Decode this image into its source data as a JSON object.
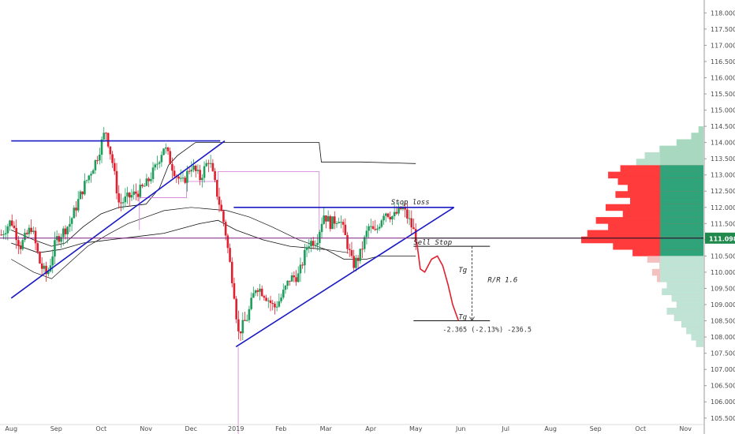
{
  "chart_data": {
    "type": "candlestick",
    "title": "",
    "xlabel": "",
    "ylabel": "",
    "y_axis_side": "right",
    "ylim": [
      105.3,
      118.3
    ],
    "y_ticks": [
      "118.000",
      "117.500",
      "117.000",
      "116.500",
      "116.000",
      "115.500",
      "115.000",
      "114.500",
      "114.000",
      "113.500",
      "113.000",
      "112.500",
      "112.000",
      "111.500",
      "111.000",
      "110.500",
      "110.000",
      "109.500",
      "109.000",
      "108.500",
      "108.000",
      "107.500",
      "107.000",
      "106.500",
      "106.000",
      "105.500"
    ],
    "x_ticks": [
      {
        "label": "Aug",
        "t": 0.0
      },
      {
        "label": "Sep",
        "t": 1.0
      },
      {
        "label": "Oct",
        "t": 2.0
      },
      {
        "label": "Nov",
        "t": 3.0
      },
      {
        "label": "Dec",
        "t": 4.0
      },
      {
        "label": "2019",
        "t": 5.0
      },
      {
        "label": "Feb",
        "t": 6.0
      },
      {
        "label": "Mar",
        "t": 7.0
      },
      {
        "label": "Apr",
        "t": 8.0
      },
      {
        "label": "May",
        "t": 9.0
      },
      {
        "label": "Jun",
        "t": 10.0
      },
      {
        "label": "Jul",
        "t": 11.0
      },
      {
        "label": "Aug",
        "t": 12.0
      },
      {
        "label": "Sep",
        "t": 13.0
      },
      {
        "label": "Oct",
        "t": 14.0
      },
      {
        "label": "Nov",
        "t": 15.0
      }
    ],
    "xlim": [
      -0.25,
      15.4
    ],
    "last_price": "111.098",
    "price_path": [
      {
        "t": -0.25,
        "p": 111.1
      },
      {
        "t": 0.0,
        "p": 111.6
      },
      {
        "t": 0.2,
        "p": 110.8
      },
      {
        "t": 0.45,
        "p": 111.4
      },
      {
        "t": 0.65,
        "p": 110.2
      },
      {
        "t": 0.8,
        "p": 109.9
      },
      {
        "t": 1.0,
        "p": 111.0
      },
      {
        "t": 1.3,
        "p": 111.5
      },
      {
        "t": 1.6,
        "p": 112.6
      },
      {
        "t": 1.9,
        "p": 113.5
      },
      {
        "t": 2.1,
        "p": 114.4
      },
      {
        "t": 2.25,
        "p": 113.4
      },
      {
        "t": 2.4,
        "p": 112.1
      },
      {
        "t": 2.6,
        "p": 112.3
      },
      {
        "t": 2.85,
        "p": 112.5
      },
      {
        "t": 3.0,
        "p": 112.7
      },
      {
        "t": 3.2,
        "p": 113.2
      },
      {
        "t": 3.4,
        "p": 113.9
      },
      {
        "t": 3.6,
        "p": 113.2
      },
      {
        "t": 3.8,
        "p": 112.7
      },
      {
        "t": 4.0,
        "p": 113.3
      },
      {
        "t": 4.2,
        "p": 112.9
      },
      {
        "t": 4.4,
        "p": 113.5
      },
      {
        "t": 4.6,
        "p": 112.3
      },
      {
        "t": 4.75,
        "p": 111.4
      },
      {
        "t": 4.85,
        "p": 110.4
      },
      {
        "t": 4.95,
        "p": 109.5
      },
      {
        "t": 5.05,
        "p": 108.1
      },
      {
        "t": 5.25,
        "p": 108.6
      },
      {
        "t": 5.45,
        "p": 109.6
      },
      {
        "t": 5.65,
        "p": 109.3
      },
      {
        "t": 5.85,
        "p": 108.9
      },
      {
        "t": 6.0,
        "p": 109.2
      },
      {
        "t": 6.2,
        "p": 109.8
      },
      {
        "t": 6.4,
        "p": 109.9
      },
      {
        "t": 6.6,
        "p": 110.9
      },
      {
        "t": 6.8,
        "p": 111.0
      },
      {
        "t": 6.95,
        "p": 111.8
      },
      {
        "t": 7.1,
        "p": 111.5
      },
      {
        "t": 7.3,
        "p": 111.7
      },
      {
        "t": 7.45,
        "p": 111.0
      },
      {
        "t": 7.6,
        "p": 110.2
      },
      {
        "t": 7.75,
        "p": 110.5
      },
      {
        "t": 7.95,
        "p": 111.4
      },
      {
        "t": 8.1,
        "p": 111.2
      },
      {
        "t": 8.3,
        "p": 111.9
      },
      {
        "t": 8.5,
        "p": 111.7
      },
      {
        "t": 8.7,
        "p": 112.0
      },
      {
        "t": 8.85,
        "p": 111.6
      },
      {
        "t": 9.0,
        "p": 111.1
      }
    ],
    "volume_profile": [
      {
        "p": 114.4,
        "v": 0.04,
        "side": "up"
      },
      {
        "p": 114.2,
        "v": 0.1,
        "side": "up"
      },
      {
        "p": 114.0,
        "v": 0.22,
        "side": "up"
      },
      {
        "p": 113.8,
        "v": 0.36,
        "side": "up"
      },
      {
        "p": 113.6,
        "v": 0.48,
        "side": "up"
      },
      {
        "p": 113.4,
        "v": 0.55,
        "side": "up"
      },
      {
        "p": 113.2,
        "v": 0.68,
        "side": "va"
      },
      {
        "p": 113.0,
        "v": 0.78,
        "side": "va"
      },
      {
        "p": 112.8,
        "v": 0.7,
        "side": "va"
      },
      {
        "p": 112.6,
        "v": 0.62,
        "side": "va"
      },
      {
        "p": 112.4,
        "v": 0.72,
        "side": "va"
      },
      {
        "p": 112.2,
        "v": 0.6,
        "side": "va"
      },
      {
        "p": 112.0,
        "v": 0.8,
        "side": "va"
      },
      {
        "p": 111.8,
        "v": 0.66,
        "side": "va"
      },
      {
        "p": 111.6,
        "v": 0.88,
        "side": "va"
      },
      {
        "p": 111.4,
        "v": 0.78,
        "side": "va"
      },
      {
        "p": 111.2,
        "v": 0.95,
        "side": "va"
      },
      {
        "p": 111.0,
        "v": 1.0,
        "side": "va"
      },
      {
        "p": 110.8,
        "v": 0.74,
        "side": "va"
      },
      {
        "p": 110.6,
        "v": 0.58,
        "side": "va"
      },
      {
        "p": 110.4,
        "v": 0.46,
        "side": "dn"
      },
      {
        "p": 110.2,
        "v": 0.36,
        "side": "dn"
      },
      {
        "p": 110.0,
        "v": 0.42,
        "side": "dn"
      },
      {
        "p": 109.8,
        "v": 0.38,
        "side": "dn"
      },
      {
        "p": 109.6,
        "v": 0.3,
        "side": "dn"
      },
      {
        "p": 109.4,
        "v": 0.34,
        "side": "dn"
      },
      {
        "p": 109.2,
        "v": 0.26,
        "side": "dn"
      },
      {
        "p": 109.0,
        "v": 0.22,
        "side": "dn"
      },
      {
        "p": 108.8,
        "v": 0.3,
        "side": "dn"
      },
      {
        "p": 108.6,
        "v": 0.24,
        "side": "dn"
      },
      {
        "p": 108.4,
        "v": 0.18,
        "side": "dn"
      },
      {
        "p": 108.2,
        "v": 0.14,
        "side": "dn"
      },
      {
        "p": 108.0,
        "v": 0.1,
        "side": "dn"
      },
      {
        "p": 107.8,
        "v": 0.06,
        "side": "dn"
      }
    ],
    "value_area": {
      "high": 113.3,
      "low": 110.4
    },
    "trendlines": [
      {
        "name": "top-resistance",
        "color": "#1b1bc4",
        "from": {
          "t": 0.0,
          "p": 114.05
        },
        "to": {
          "t": 3.45,
          "p": 114.05
        }
      },
      {
        "name": "top-resistance-ext",
        "color": "#1b1bc4",
        "from": {
          "t": 3.45,
          "p": 114.05
        },
        "to": {
          "t": 4.65,
          "p": 114.05
        }
      },
      {
        "name": "lower-trend-1",
        "color": "#1b1bc4",
        "from": {
          "t": 0.0,
          "p": 109.2
        },
        "to": {
          "t": 4.75,
          "p": 114.05
        }
      },
      {
        "name": "stop-loss-line",
        "color": "#1b1bc4",
        "from": {
          "t": 4.95,
          "p": 112.0
        },
        "to": {
          "t": 9.85,
          "p": 112.0
        }
      },
      {
        "name": "lower-trend-2",
        "color": "#1b1bc4",
        "from": {
          "t": 5.0,
          "p": 107.7
        },
        "to": {
          "t": 9.85,
          "p": 112.0
        }
      }
    ],
    "horizontal_levels": [
      {
        "name": "current-price-line",
        "color": "#7b1f7b",
        "p": 111.05
      },
      {
        "name": "sell-stop-level",
        "color": "#111",
        "p": 110.8,
        "from_t": 8.95,
        "to_t": 10.65
      },
      {
        "name": "target-level",
        "color": "#111",
        "p": 108.5,
        "from_t": 8.95,
        "to_t": 10.65
      }
    ],
    "annotations": {
      "stop_loss": "Stop loss",
      "sell_stop": "Sell Stop",
      "target_upper": "Tg",
      "target_lower": "Tg",
      "risk_reward": "R/R 1.6",
      "measure": "-2.365 (-2.13%) -236.5"
    },
    "colors": {
      "bull": "#1f9d5c",
      "bear": "#e0202e",
      "profile_up": "#b8e0cc",
      "profile_dn": "#f5c0c0",
      "va_green": "#2fa37a",
      "va_red": "#ff3b3b",
      "price_badge": "#1f8a4c",
      "trend": "#1b1bc4",
      "projection": "#e0202e"
    }
  }
}
